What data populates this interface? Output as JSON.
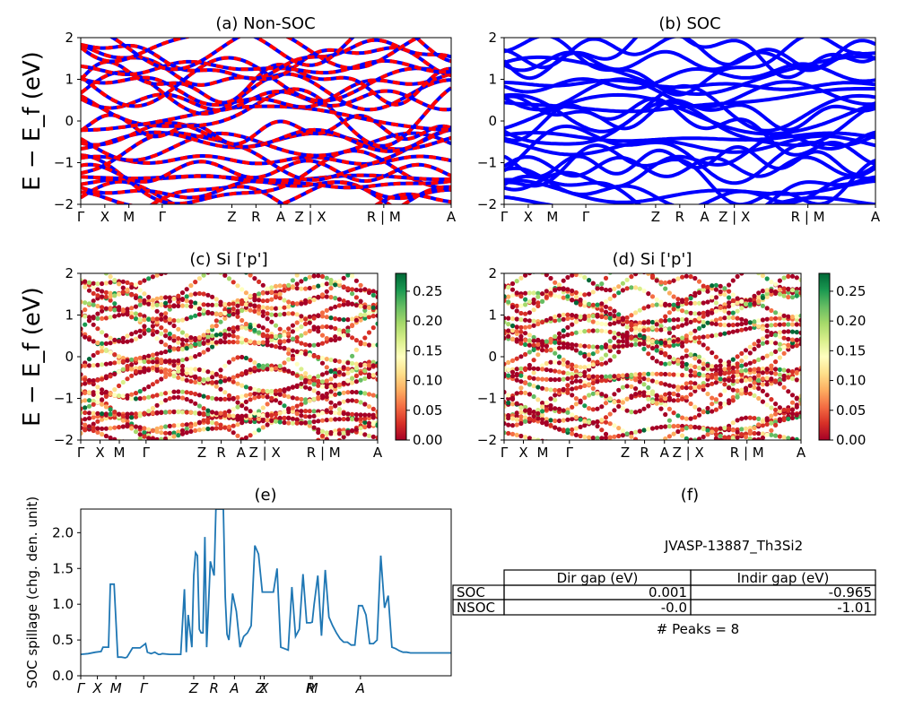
{
  "chart_data": [
    {
      "id": "a",
      "type": "line",
      "title": "(a) Non-SOC",
      "ylabel": "E − E_f (eV)",
      "ylim": [
        -2,
        2
      ],
      "yticks": [
        "2",
        "1",
        "0",
        "−1",
        "−2"
      ],
      "xticks": [
        "Γ",
        "X",
        "M",
        "Γ",
        "Z",
        "R",
        "A",
        "Z | X",
        "R | M",
        "A"
      ],
      "series": [
        {
          "color": "#0000ff",
          "style": "solid"
        },
        {
          "color": "#ff0000",
          "style": "dashed"
        }
      ]
    },
    {
      "id": "b",
      "type": "line",
      "title": "(b) SOC",
      "ylim": [
        -2,
        2
      ],
      "yticks": [
        "2",
        "1",
        "0",
        "−1",
        "−2"
      ],
      "xticks": [
        "Γ",
        "X",
        "M",
        "Γ",
        "Z",
        "R",
        "A",
        "Z | X",
        "R | M",
        "A"
      ],
      "series": [
        {
          "color": "#0000ff",
          "style": "solid"
        }
      ]
    },
    {
      "id": "c",
      "type": "scatter",
      "title": "(c)  Si ['p']",
      "ylabel": "E − E_f (eV)",
      "ylim": [
        -2,
        2
      ],
      "yticks": [
        "2",
        "1",
        "0",
        "−1",
        "−2"
      ],
      "xticks": [
        "Γ",
        "X",
        "M",
        "Γ",
        "Z",
        "R",
        "A",
        "Z | X",
        "R | M",
        "A"
      ],
      "colorbar": {
        "min": 0.0,
        "max": 0.28,
        "ticks": [
          "0.25",
          "0.20",
          "0.15",
          "0.10",
          "0.05",
          "0.00"
        ],
        "colormap": "RdYlGn"
      }
    },
    {
      "id": "d",
      "type": "scatter",
      "title": "(d) Si ['p']",
      "ylim": [
        -2,
        2
      ],
      "yticks": [
        "2",
        "1",
        "0",
        "−1",
        "−2"
      ],
      "xticks": [
        "Γ",
        "X",
        "M",
        "Γ",
        "Z",
        "R",
        "A",
        "Z | X",
        "R | M",
        "A"
      ],
      "colorbar": {
        "min": 0.0,
        "max": 0.28,
        "ticks": [
          "0.25",
          "0.20",
          "0.15",
          "0.10",
          "0.05",
          "0.00"
        ],
        "colormap": "RdYlGn"
      }
    },
    {
      "id": "e",
      "type": "line",
      "title": "(e)",
      "ylabel": "SOC spillage (chg. den. unit)",
      "ylim": [
        0,
        2.33
      ],
      "yticks": [
        "2.0",
        "1.5",
        "1.0",
        "0.5",
        "0.0"
      ],
      "xticks": [
        "Γ",
        "X",
        "M",
        "Γ",
        "Z",
        "R",
        "A",
        "Z",
        "X",
        "R",
        "M",
        "A"
      ],
      "color": "#1f77b4",
      "x": [
        0.0,
        0.02,
        0.04,
        0.055,
        0.06,
        0.075,
        0.08,
        0.09,
        0.1,
        0.11,
        0.12,
        0.125,
        0.14,
        0.16,
        0.175,
        0.18,
        0.19,
        0.2,
        0.21,
        0.215,
        0.22,
        0.24,
        0.25,
        0.27,
        0.28,
        0.285,
        0.29,
        0.3,
        0.305,
        0.31,
        0.315,
        0.32,
        0.325,
        0.33,
        0.335,
        0.34,
        0.345,
        0.35,
        0.36,
        0.365,
        0.37,
        0.375,
        0.38,
        0.385,
        0.39,
        0.395,
        0.4,
        0.41,
        0.42,
        0.43,
        0.44,
        0.45,
        0.46,
        0.47,
        0.48,
        0.49,
        0.5,
        0.505,
        0.51,
        0.52,
        0.53,
        0.54,
        0.55,
        0.56,
        0.57,
        0.58,
        0.59,
        0.6,
        0.61,
        0.62,
        0.625,
        0.63,
        0.64,
        0.65,
        0.66,
        0.67,
        0.68,
        0.69,
        0.7,
        0.71,
        0.72,
        0.73,
        0.74,
        0.75,
        0.76,
        0.77,
        0.78,
        0.79,
        0.8,
        0.81,
        0.82,
        0.83,
        0.84,
        0.85,
        0.86,
        0.87,
        0.88,
        0.89,
        0.9,
        0.91,
        0.92,
        0.93,
        0.94,
        0.95,
        0.96,
        0.97,
        0.98,
        0.99,
        1.0
      ],
      "y": [
        0.3,
        0.31,
        0.33,
        0.34,
        0.4,
        0.4,
        1.28,
        1.28,
        0.26,
        0.26,
        0.25,
        0.26,
        0.39,
        0.39,
        0.45,
        0.33,
        0.31,
        0.33,
        0.3,
        0.3,
        0.31,
        0.3,
        0.3,
        0.3,
        1.21,
        0.33,
        0.85,
        0.4,
        1.4,
        1.72,
        1.68,
        0.65,
        0.6,
        0.6,
        1.94,
        0.4,
        1.0,
        1.6,
        1.4,
        2.33,
        2.33,
        2.33,
        2.33,
        2.33,
        1.1,
        0.58,
        0.5,
        1.15,
        0.9,
        0.4,
        0.55,
        0.6,
        0.7,
        1.82,
        1.7,
        1.17,
        1.17,
        1.17,
        1.17,
        1.17,
        1.5,
        0.4,
        0.38,
        0.36,
        1.24,
        0.55,
        0.65,
        1.42,
        0.74,
        0.74,
        0.75,
        1.0,
        1.4,
        0.56,
        1.48,
        0.82,
        0.7,
        0.6,
        0.52,
        0.47,
        0.47,
        0.43,
        0.43,
        0.98,
        0.98,
        0.85,
        0.45,
        0.45,
        0.5,
        1.68,
        0.95,
        1.12,
        0.4,
        0.38,
        0.35,
        0.33,
        0.33,
        0.32,
        0.32,
        0.32,
        0.32,
        0.32,
        0.32,
        0.32,
        0.32,
        0.32,
        0.32,
        0.32,
        0.32
      ]
    },
    {
      "id": "f",
      "type": "table",
      "title": "(f)",
      "caption": "JVASP-13887_Th3Si2",
      "columns": [
        "Dir gap (eV)",
        "Indir gap (eV)"
      ],
      "rows": [
        {
          "label": "SOC",
          "values": [
            "0.001",
            "-0.965"
          ]
        },
        {
          "label": "NSOC",
          "values": [
            "-0.0",
            "-1.01"
          ]
        }
      ],
      "footer": "# Peaks = 8"
    }
  ]
}
